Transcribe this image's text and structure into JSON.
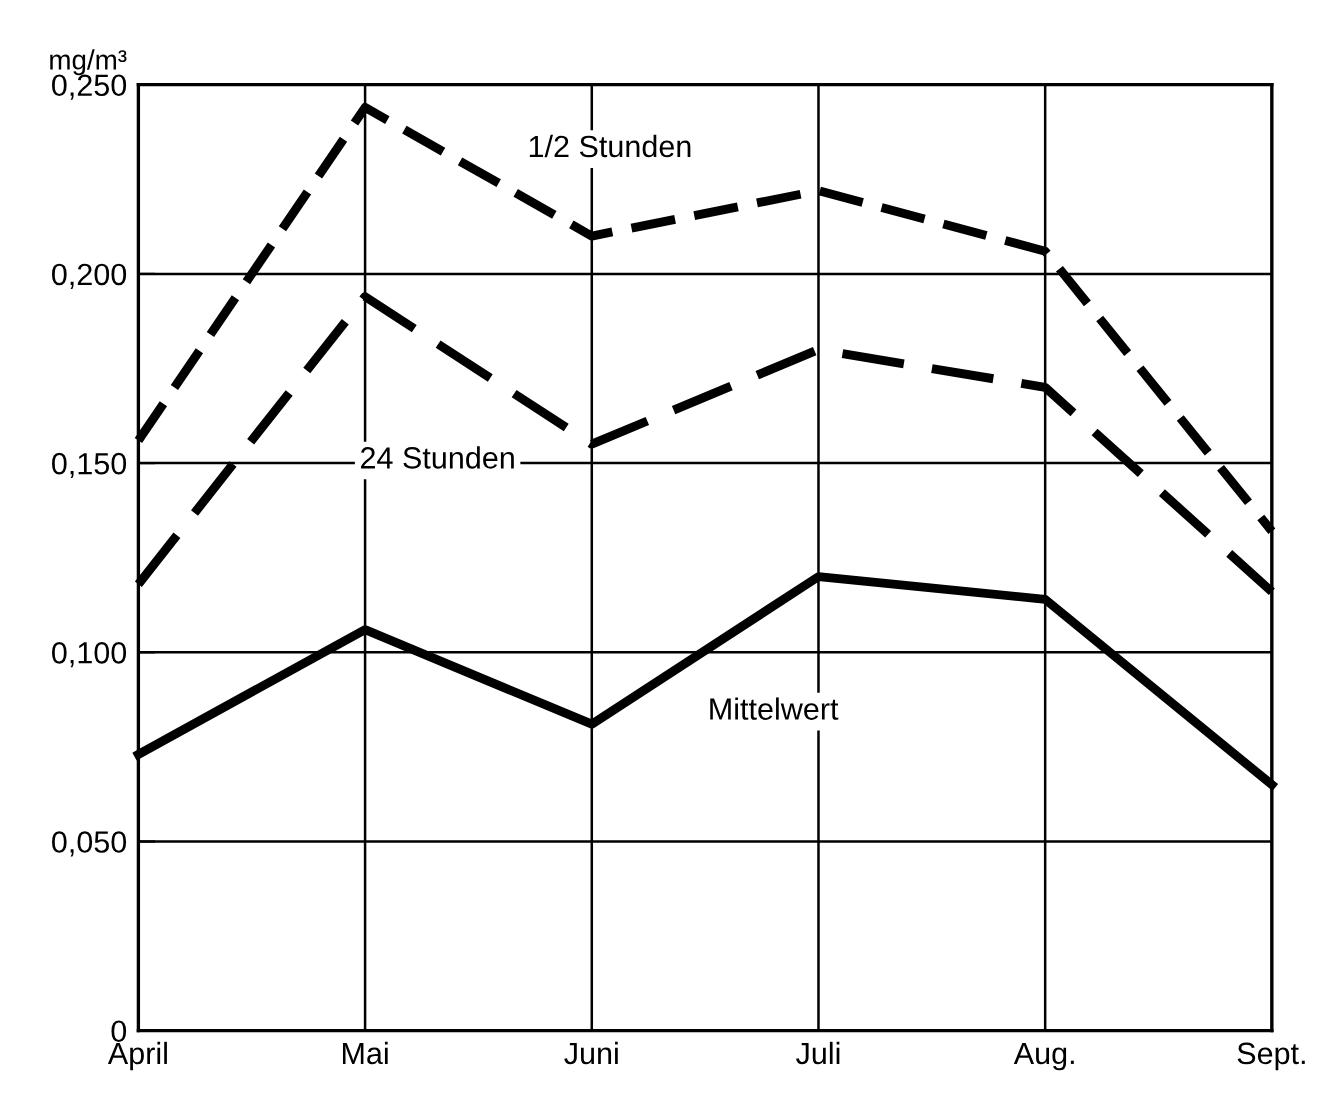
{
  "chart_data": {
    "type": "line",
    "ylabel": "mg/m³",
    "categories": [
      "April",
      "Mai",
      "Juni",
      "Juli",
      "Aug.",
      "Sept."
    ],
    "series": [
      {
        "name": "1/2 Stunden",
        "color": "#000000",
        "line_style": "dashed",
        "values": [
          0.156,
          0.244,
          0.21,
          0.222,
          0.206,
          0.132
        ]
      },
      {
        "name": "24 Stunden",
        "color": "#000000",
        "line_style": "dashed",
        "values": [
          0.118,
          0.194,
          0.155,
          0.18,
          0.17,
          0.116
        ]
      },
      {
        "name": "Mittelwert",
        "color": "#000000",
        "line_style": "solid",
        "values": [
          0.073,
          0.106,
          0.081,
          0.12,
          0.114,
          0.065
        ]
      }
    ],
    "ylim": [
      0,
      0.25
    ],
    "yticks": [
      0,
      {
        "value": 0.05,
        "label": "0,050"
      },
      {
        "value": 0.1,
        "label": "0,100"
      },
      {
        "value": 0.15,
        "label": "0,150"
      },
      {
        "value": 0.2,
        "label": "0,200"
      },
      {
        "value": 0.25,
        "label": "0,250"
      }
    ],
    "grid": true,
    "legend": false,
    "marker": "none"
  }
}
